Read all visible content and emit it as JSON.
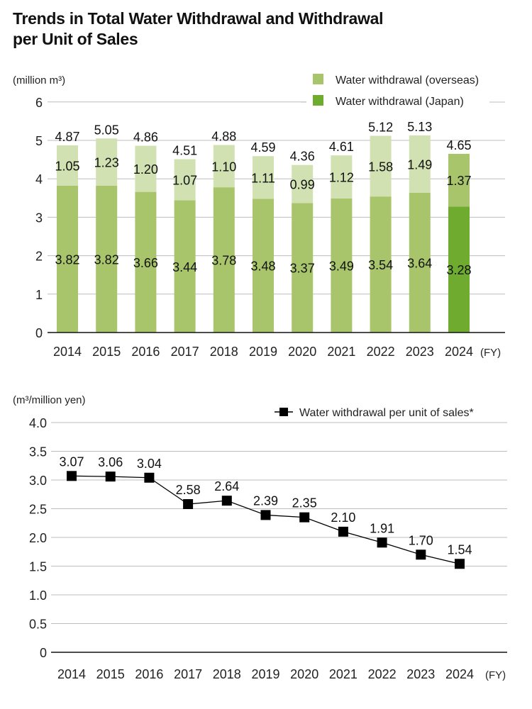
{
  "title": "Trends in Total Water Withdrawal and Withdrawal per Unit of Sales",
  "title_lines": [
    "Trends in Total Water Withdrawal and Withdrawal",
    "per Unit of Sales"
  ],
  "chart_data": [
    {
      "type": "bar",
      "stacked": true,
      "unit_label": "(million m³)",
      "xlabel": "(FY)",
      "ylabel": "",
      "categories": [
        "2014",
        "2015",
        "2016",
        "2017",
        "2018",
        "2019",
        "2020",
        "2021",
        "2022",
        "2023",
        "2024"
      ],
      "series": [
        {
          "name": "Water withdrawal (Japan)",
          "values": [
            3.82,
            3.82,
            3.66,
            3.44,
            3.78,
            3.48,
            3.37,
            3.49,
            3.54,
            3.64,
            3.28
          ],
          "color": "#6fab2f",
          "past_color": "#a8c56c"
        },
        {
          "name": "Water withdrawal (overseas)",
          "values": [
            1.05,
            1.23,
            1.2,
            1.07,
            1.1,
            1.11,
            0.99,
            1.12,
            1.58,
            1.49,
            1.37
          ],
          "color": "#a8c56c",
          "past_color": "#d1e1b1"
        }
      ],
      "totals": [
        4.87,
        5.05,
        4.86,
        4.51,
        4.88,
        4.59,
        4.36,
        4.61,
        5.12,
        5.13,
        4.65
      ],
      "legend": [
        {
          "label": "Water withdrawal (overseas)",
          "color": "#a8c56c"
        },
        {
          "label": "Water withdrawal (Japan)",
          "color": "#6fab2f"
        }
      ],
      "legend_position": "top-right",
      "yticks": [
        "0",
        "1",
        "2",
        "3",
        "4",
        "5",
        "6"
      ],
      "ylim": [
        0,
        6
      ],
      "grid": true
    },
    {
      "type": "line",
      "unit_label": "(m³/million yen)",
      "xlabel": "(FY)",
      "ylabel": "",
      "categories": [
        "2014",
        "2015",
        "2016",
        "2017",
        "2018",
        "2019",
        "2020",
        "2021",
        "2022",
        "2023",
        "2024"
      ],
      "series": [
        {
          "name": "Water withdrawal per unit of sales*",
          "values": [
            3.07,
            3.06,
            3.04,
            2.58,
            2.64,
            2.39,
            2.35,
            2.1,
            1.91,
            1.7,
            1.54
          ],
          "color": "#000000",
          "marker": "square"
        }
      ],
      "value_labels": [
        "3.07",
        "3.06",
        "3.04",
        "2.58",
        "2.64",
        "2.39",
        "2.35",
        "2.10",
        "1.91",
        "1.70",
        "1.54"
      ],
      "legend": [
        {
          "label": "Water withdrawal per unit of sales*",
          "color": "#000000"
        }
      ],
      "legend_position": "top-right",
      "yticks": [
        "0",
        "0.5",
        "1.0",
        "1.5",
        "2.0",
        "2.5",
        "3.0",
        "3.5",
        "4.0"
      ],
      "ylim": [
        0,
        4
      ],
      "grid": true
    }
  ]
}
